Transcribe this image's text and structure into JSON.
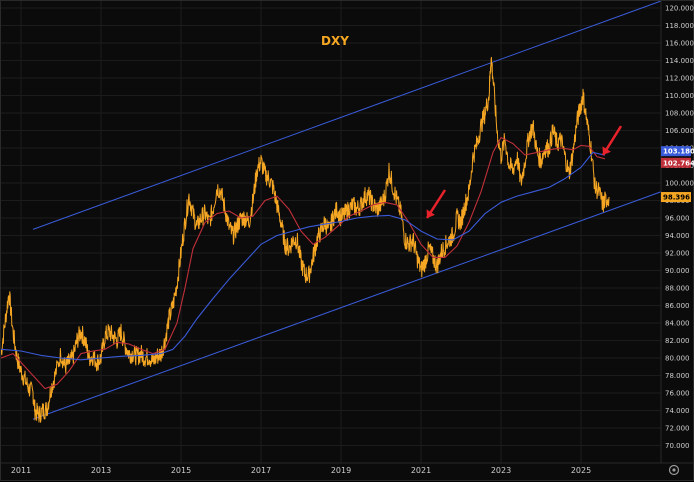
{
  "chart_data": {
    "type": "line",
    "title": "DXY",
    "ylim": [
      68,
      120.8
    ],
    "xlim": [
      2010.5,
      2027.0
    ],
    "y_ticks": [
      "120.000",
      "118.000",
      "116.000",
      "114.000",
      "112.000",
      "110.000",
      "108.000",
      "106.000",
      "104.000",
      "102.000",
      "100.000",
      "98.000",
      "96.000",
      "94.000",
      "92.000",
      "90.000",
      "88.000",
      "86.000",
      "84.000",
      "82.000",
      "80.000",
      "78.000",
      "76.000",
      "74.000",
      "72.000",
      "70.000"
    ],
    "x_ticks": [
      "2011",
      "2013",
      "2015",
      "2017",
      "2019",
      "2021",
      "2023",
      "2025"
    ],
    "grid": true,
    "series": [
      {
        "color": "#f5a623",
        "points": [
          [
            2010.5,
            80.5
          ],
          [
            2010.6,
            84.0
          ],
          [
            2010.7,
            87.5
          ],
          [
            2010.8,
            83.0
          ],
          [
            2010.9,
            80.0
          ],
          [
            2011.0,
            78.5
          ],
          [
            2011.1,
            77.5
          ],
          [
            2011.2,
            76.5
          ],
          [
            2011.3,
            76.0
          ],
          [
            2011.35,
            74.0
          ],
          [
            2011.45,
            73.5
          ],
          [
            2011.55,
            74.0
          ],
          [
            2011.65,
            74.2
          ],
          [
            2011.75,
            76.5
          ],
          [
            2011.85,
            78.0
          ],
          [
            2012.0,
            80.5
          ],
          [
            2012.1,
            79.0
          ],
          [
            2012.2,
            79.5
          ],
          [
            2012.3,
            80.0
          ],
          [
            2012.4,
            82.0
          ],
          [
            2012.5,
            83.0
          ],
          [
            2012.6,
            82.0
          ],
          [
            2012.7,
            80.0
          ],
          [
            2012.8,
            80.2
          ],
          [
            2012.9,
            79.5
          ],
          [
            2013.0,
            80.0
          ],
          [
            2013.1,
            82.5
          ],
          [
            2013.2,
            83.0
          ],
          [
            2013.3,
            82.5
          ],
          [
            2013.4,
            82.0
          ],
          [
            2013.5,
            83.0
          ],
          [
            2013.6,
            81.5
          ],
          [
            2013.7,
            80.5
          ],
          [
            2013.8,
            80.5
          ],
          [
            2013.9,
            80.2
          ],
          [
            2014.0,
            80.5
          ],
          [
            2014.1,
            80.0
          ],
          [
            2014.2,
            80.2
          ],
          [
            2014.3,
            79.5
          ],
          [
            2014.4,
            80.2
          ],
          [
            2014.5,
            80.5
          ],
          [
            2014.6,
            82.0
          ],
          [
            2014.7,
            84.5
          ],
          [
            2014.8,
            86.0
          ],
          [
            2014.9,
            88.5
          ],
          [
            2015.0,
            92.0
          ],
          [
            2015.1,
            95.5
          ],
          [
            2015.2,
            98.5
          ],
          [
            2015.3,
            96.5
          ],
          [
            2015.4,
            95.0
          ],
          [
            2015.5,
            96.0
          ],
          [
            2015.6,
            96.5
          ],
          [
            2015.7,
            95.5
          ],
          [
            2015.8,
            97.0
          ],
          [
            2015.9,
            99.5
          ],
          [
            2016.0,
            99.0
          ],
          [
            2016.1,
            97.0
          ],
          [
            2016.2,
            95.0
          ],
          [
            2016.3,
            94.0
          ],
          [
            2016.4,
            95.0
          ],
          [
            2016.5,
            96.0
          ],
          [
            2016.6,
            96.0
          ],
          [
            2016.7,
            95.5
          ],
          [
            2016.8,
            98.0
          ],
          [
            2016.9,
            101.5
          ],
          [
            2017.0,
            102.5
          ],
          [
            2017.1,
            101.0
          ],
          [
            2017.2,
            100.5
          ],
          [
            2017.3,
            99.5
          ],
          [
            2017.4,
            97.5
          ],
          [
            2017.5,
            95.5
          ],
          [
            2017.6,
            93.0
          ],
          [
            2017.7,
            92.5
          ],
          [
            2017.8,
            93.5
          ],
          [
            2017.9,
            93.5
          ],
          [
            2018.0,
            91.0
          ],
          [
            2018.1,
            89.5
          ],
          [
            2018.2,
            89.5
          ],
          [
            2018.3,
            91.5
          ],
          [
            2018.4,
            93.5
          ],
          [
            2018.5,
            94.5
          ],
          [
            2018.6,
            95.5
          ],
          [
            2018.7,
            94.5
          ],
          [
            2018.8,
            96.0
          ],
          [
            2018.9,
            97.0
          ],
          [
            2019.0,
            96.0
          ],
          [
            2019.1,
            96.5
          ],
          [
            2019.2,
            97.0
          ],
          [
            2019.3,
            97.5
          ],
          [
            2019.4,
            97.0
          ],
          [
            2019.5,
            97.5
          ],
          [
            2019.6,
            98.5
          ],
          [
            2019.7,
            98.5
          ],
          [
            2019.8,
            97.5
          ],
          [
            2019.9,
            97.0
          ],
          [
            2020.0,
            97.5
          ],
          [
            2020.1,
            98.5
          ],
          [
            2020.2,
            101.5
          ],
          [
            2020.3,
            99.5
          ],
          [
            2020.4,
            98.0
          ],
          [
            2020.5,
            96.5
          ],
          [
            2020.6,
            93.5
          ],
          [
            2020.7,
            93.0
          ],
          [
            2020.8,
            93.5
          ],
          [
            2020.9,
            91.5
          ],
          [
            2021.0,
            90.0
          ],
          [
            2021.1,
            91.0
          ],
          [
            2021.2,
            92.5
          ],
          [
            2021.3,
            91.5
          ],
          [
            2021.4,
            90.5
          ],
          [
            2021.5,
            92.0
          ],
          [
            2021.6,
            92.8
          ],
          [
            2021.7,
            93.5
          ],
          [
            2021.8,
            94.0
          ],
          [
            2021.9,
            96.0
          ],
          [
            2022.0,
            95.5
          ],
          [
            2022.1,
            97.5
          ],
          [
            2022.2,
            99.0
          ],
          [
            2022.3,
            103.0
          ],
          [
            2022.4,
            104.5
          ],
          [
            2022.5,
            106.5
          ],
          [
            2022.6,
            108.0
          ],
          [
            2022.7,
            110.0
          ],
          [
            2022.75,
            114.5
          ],
          [
            2022.8,
            112.0
          ],
          [
            2022.9,
            106.0
          ],
          [
            2023.0,
            103.0
          ],
          [
            2023.1,
            105.0
          ],
          [
            2023.2,
            102.0
          ],
          [
            2023.3,
            101.5
          ],
          [
            2023.4,
            103.0
          ],
          [
            2023.5,
            100.0
          ],
          [
            2023.6,
            102.5
          ],
          [
            2023.7,
            105.5
          ],
          [
            2023.8,
            106.5
          ],
          [
            2023.9,
            103.5
          ],
          [
            2024.0,
            102.5
          ],
          [
            2024.1,
            104.0
          ],
          [
            2024.2,
            104.0
          ],
          [
            2024.3,
            106.0
          ],
          [
            2024.4,
            104.5
          ],
          [
            2024.5,
            105.0
          ],
          [
            2024.6,
            103.0
          ],
          [
            2024.7,
            101.0
          ],
          [
            2024.8,
            103.5
          ],
          [
            2024.9,
            107.0
          ],
          [
            2025.0,
            109.0
          ],
          [
            2025.05,
            110.0
          ],
          [
            2025.15,
            107.0
          ],
          [
            2025.25,
            104.0
          ],
          [
            2025.35,
            99.5
          ],
          [
            2025.45,
            99.0
          ],
          [
            2025.55,
            97.5
          ],
          [
            2025.6,
            98.0
          ],
          [
            2025.7,
            98.4
          ]
        ]
      },
      {
        "color": "#c0303a",
        "points": [
          [
            2010.5,
            80.0
          ],
          [
            2010.8,
            80.5
          ],
          [
            2011.0,
            79.5
          ],
          [
            2011.3,
            78.0
          ],
          [
            2011.6,
            76.5
          ],
          [
            2011.9,
            77.0
          ],
          [
            2012.2,
            78.5
          ],
          [
            2012.5,
            80.5
          ],
          [
            2012.8,
            80.8
          ],
          [
            2013.1,
            81.0
          ],
          [
            2013.4,
            81.8
          ],
          [
            2013.7,
            81.6
          ],
          [
            2014.0,
            81.0
          ],
          [
            2014.3,
            80.5
          ],
          [
            2014.6,
            81.0
          ],
          [
            2014.9,
            84.0
          ],
          [
            2015.1,
            88.0
          ],
          [
            2015.3,
            92.5
          ],
          [
            2015.6,
            95.5
          ],
          [
            2015.9,
            96.5
          ],
          [
            2016.2,
            96.8
          ],
          [
            2016.5,
            96.0
          ],
          [
            2016.8,
            96.2
          ],
          [
            2017.1,
            98.0
          ],
          [
            2017.4,
            98.5
          ],
          [
            2017.7,
            97.0
          ],
          [
            2018.0,
            94.5
          ],
          [
            2018.3,
            93.0
          ],
          [
            2018.6,
            93.8
          ],
          [
            2018.9,
            95.0
          ],
          [
            2019.2,
            96.2
          ],
          [
            2019.5,
            96.8
          ],
          [
            2019.8,
            97.5
          ],
          [
            2020.1,
            97.8
          ],
          [
            2020.4,
            97.5
          ],
          [
            2020.7,
            95.5
          ],
          [
            2021.0,
            93.0
          ],
          [
            2021.3,
            91.5
          ],
          [
            2021.6,
            91.5
          ],
          [
            2021.9,
            92.8
          ],
          [
            2022.2,
            95.5
          ],
          [
            2022.5,
            99.0
          ],
          [
            2022.8,
            103.5
          ],
          [
            2023.0,
            105.2
          ],
          [
            2023.3,
            104.5
          ],
          [
            2023.6,
            103.2
          ],
          [
            2023.9,
            103.5
          ],
          [
            2024.2,
            103.8
          ],
          [
            2024.5,
            104.0
          ],
          [
            2024.8,
            103.8
          ],
          [
            2025.0,
            104.3
          ],
          [
            2025.2,
            104.2
          ],
          [
            2025.4,
            103.0
          ],
          [
            2025.6,
            102.76
          ]
        ]
      },
      {
        "color": "#3a5bd9",
        "points": [
          [
            2010.5,
            81.0
          ],
          [
            2011.0,
            80.8
          ],
          [
            2011.5,
            80.3
          ],
          [
            2012.0,
            80.0
          ],
          [
            2012.5,
            79.8
          ],
          [
            2013.0,
            80.0
          ],
          [
            2013.5,
            80.2
          ],
          [
            2014.0,
            80.3
          ],
          [
            2014.5,
            80.5
          ],
          [
            2014.8,
            81.0
          ],
          [
            2015.1,
            82.5
          ],
          [
            2015.4,
            84.5
          ],
          [
            2015.8,
            86.8
          ],
          [
            2016.2,
            89.0
          ],
          [
            2016.6,
            91.0
          ],
          [
            2017.0,
            93.0
          ],
          [
            2017.4,
            94.0
          ],
          [
            2017.8,
            94.5
          ],
          [
            2018.2,
            95.0
          ],
          [
            2018.6,
            95.3
          ],
          [
            2019.0,
            95.6
          ],
          [
            2019.4,
            96.0
          ],
          [
            2019.8,
            96.2
          ],
          [
            2020.2,
            96.3
          ],
          [
            2020.6,
            95.8
          ],
          [
            2021.0,
            94.5
          ],
          [
            2021.4,
            93.6
          ],
          [
            2021.8,
            93.5
          ],
          [
            2022.2,
            94.5
          ],
          [
            2022.6,
            96.5
          ],
          [
            2023.0,
            97.8
          ],
          [
            2023.4,
            98.5
          ],
          [
            2023.8,
            99.0
          ],
          [
            2024.2,
            99.5
          ],
          [
            2024.6,
            100.5
          ],
          [
            2025.0,
            101.8
          ],
          [
            2025.3,
            103.5
          ],
          [
            2025.6,
            103.18
          ]
        ]
      }
    ],
    "channel_lines": [
      {
        "color": "#3a5bd9",
        "from": [
          2011.3,
          94.7
        ],
        "to": [
          2027.0,
          120.8
        ]
      },
      {
        "color": "#3a5bd9",
        "from": [
          2011.3,
          73.0
        ],
        "to": [
          2027.0,
          99.0
        ]
      }
    ],
    "annotations": [
      {
        "type": "arrow",
        "color": "#e8222b",
        "from": [
          2021.6,
          99.2
        ],
        "to": [
          2021.15,
          96.0
        ]
      },
      {
        "type": "arrow",
        "color": "#e8222b",
        "from": [
          2026.0,
          106.5
        ],
        "to": [
          2025.55,
          103.2
        ]
      }
    ],
    "price_tags": [
      {
        "value": 103.18,
        "label": "103.180",
        "bg": "#3a5bd9",
        "fg": "#ffffff"
      },
      {
        "value": 102.764,
        "label": "102.764",
        "bg": "#c0303a",
        "fg": "#ffffff"
      },
      {
        "value": 98.396,
        "label": "98.396",
        "bg": "#f5a623",
        "fg": "#000000"
      }
    ]
  },
  "time_axis": {
    "settings_icon": "gear-icon"
  }
}
